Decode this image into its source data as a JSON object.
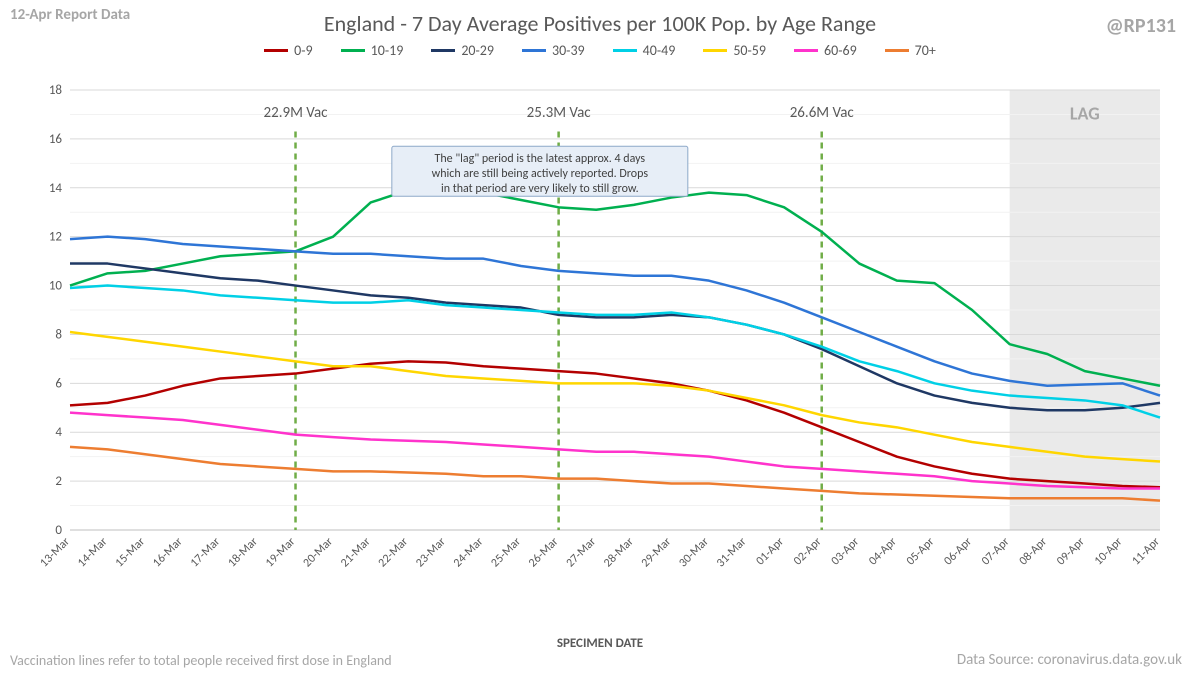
{
  "meta": {
    "top_left": "12-Apr Report Data",
    "top_right": "@RP131",
    "title": "England - 7 Day Average Positives per 100K Pop. by Age Range",
    "x_axis_title": "SPECIMEN DATE",
    "bottom_left": "Vaccination lines refer to total people received first dose in England",
    "bottom_right": "Data Source: coronavirus.data.gov.uk",
    "lag_label": "LAG",
    "callout": "The \"lag\" period is the latest approx. 4 days which are still being actively reported. Drops in that period are very likely to still grow."
  },
  "chart": {
    "type": "line",
    "background_color": "#ffffff",
    "grid_major_color": "#d9d9d9",
    "grid_minor_color": "#f2f2f2",
    "ylim": [
      0,
      18
    ],
    "ytick_step": 2,
    "x_labels": [
      "13-Mar",
      "14-Mar",
      "15-Mar",
      "16-Mar",
      "17-Mar",
      "18-Mar",
      "19-Mar",
      "20-Mar",
      "21-Mar",
      "22-Mar",
      "23-Mar",
      "24-Mar",
      "25-Mar",
      "26-Mar",
      "27-Mar",
      "28-Mar",
      "29-Mar",
      "30-Mar",
      "31-Mar",
      "01-Apr",
      "02-Apr",
      "03-Apr",
      "04-Apr",
      "05-Apr",
      "06-Apr",
      "07-Apr",
      "08-Apr",
      "09-Apr",
      "10-Apr",
      "11-Apr"
    ],
    "lag_start_index": 25,
    "vlines": [
      {
        "index": 6,
        "label": "22.9M Vac",
        "color": "#70ad47"
      },
      {
        "index": 13,
        "label": "25.3M Vac",
        "color": "#70ad47"
      },
      {
        "index": 20,
        "label": "26.6M Vac",
        "color": "#70ad47"
      }
    ],
    "series": [
      {
        "name": "0-9",
        "color": "#b30000",
        "values": [
          5.1,
          5.2,
          5.5,
          5.9,
          6.2,
          6.3,
          6.4,
          6.6,
          6.8,
          6.9,
          6.85,
          6.7,
          6.6,
          6.5,
          6.4,
          6.2,
          6.0,
          5.7,
          5.3,
          4.8,
          4.2,
          3.6,
          3.0,
          2.6,
          2.3,
          2.1,
          2.0,
          1.9,
          1.8,
          1.75
        ]
      },
      {
        "name": "10-19",
        "color": "#00b050",
        "values": [
          10.0,
          10.5,
          10.6,
          10.9,
          11.2,
          11.3,
          11.4,
          12.0,
          13.4,
          13.9,
          14.0,
          13.8,
          13.5,
          13.2,
          13.1,
          13.3,
          13.6,
          13.8,
          13.7,
          13.2,
          12.2,
          10.9,
          10.2,
          10.1,
          9.0,
          7.6,
          7.2,
          6.5,
          6.2,
          5.9
        ]
      },
      {
        "name": "20-29",
        "color": "#1f3864",
        "values": [
          10.9,
          10.9,
          10.7,
          10.5,
          10.3,
          10.2,
          10.0,
          9.8,
          9.6,
          9.5,
          9.3,
          9.2,
          9.1,
          8.8,
          8.7,
          8.7,
          8.8,
          8.7,
          8.4,
          8.0,
          7.4,
          6.7,
          6.0,
          5.5,
          5.2,
          5.0,
          4.9,
          4.9,
          5.0,
          5.2
        ]
      },
      {
        "name": "30-39",
        "color": "#2e75d6",
        "values": [
          11.9,
          12.0,
          11.9,
          11.7,
          11.6,
          11.5,
          11.4,
          11.3,
          11.3,
          11.2,
          11.1,
          11.1,
          10.8,
          10.6,
          10.5,
          10.4,
          10.4,
          10.2,
          9.8,
          9.3,
          8.7,
          8.1,
          7.5,
          6.9,
          6.4,
          6.1,
          5.9,
          5.95,
          6.0,
          5.5
        ]
      },
      {
        "name": "40-49",
        "color": "#00d0e6",
        "values": [
          9.9,
          10.0,
          9.9,
          9.8,
          9.6,
          9.5,
          9.4,
          9.3,
          9.3,
          9.4,
          9.2,
          9.1,
          9.0,
          8.9,
          8.8,
          8.8,
          8.9,
          8.7,
          8.4,
          8.0,
          7.5,
          6.9,
          6.5,
          6.0,
          5.7,
          5.5,
          5.4,
          5.3,
          5.1,
          4.6
        ]
      },
      {
        "name": "50-59",
        "color": "#ffd600",
        "values": [
          8.1,
          7.9,
          7.7,
          7.5,
          7.3,
          7.1,
          6.9,
          6.7,
          6.7,
          6.5,
          6.3,
          6.2,
          6.1,
          6.0,
          6.0,
          6.0,
          5.9,
          5.7,
          5.4,
          5.1,
          4.7,
          4.4,
          4.2,
          3.9,
          3.6,
          3.4,
          3.2,
          3.0,
          2.9,
          2.8
        ]
      },
      {
        "name": "60-69",
        "color": "#ff33cc",
        "values": [
          4.8,
          4.7,
          4.6,
          4.5,
          4.3,
          4.1,
          3.9,
          3.8,
          3.7,
          3.65,
          3.6,
          3.5,
          3.4,
          3.3,
          3.2,
          3.2,
          3.1,
          3.0,
          2.8,
          2.6,
          2.5,
          2.4,
          2.3,
          2.2,
          2.0,
          1.9,
          1.8,
          1.75,
          1.7,
          1.7
        ]
      },
      {
        "name": "70+",
        "color": "#ed7d31",
        "values": [
          3.4,
          3.3,
          3.1,
          2.9,
          2.7,
          2.6,
          2.5,
          2.4,
          2.4,
          2.35,
          2.3,
          2.2,
          2.2,
          2.1,
          2.1,
          2.0,
          1.9,
          1.9,
          1.8,
          1.7,
          1.6,
          1.5,
          1.45,
          1.4,
          1.35,
          1.3,
          1.3,
          1.3,
          1.3,
          1.2
        ]
      }
    ]
  }
}
